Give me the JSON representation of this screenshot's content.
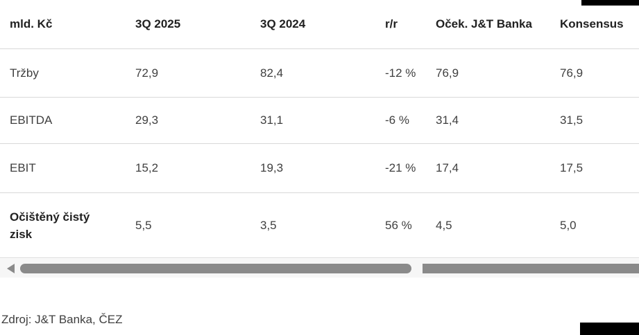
{
  "table": {
    "columns": [
      "mld. Kč",
      "3Q 2025",
      "3Q 2024",
      "r/r",
      "Oček. J&T Banka",
      "Konsensus"
    ],
    "rows": [
      {
        "label": "Tržby",
        "values": [
          "72,9",
          "82,4",
          "-12 %",
          "76,9",
          "76,9"
        ]
      },
      {
        "label": "EBITDA",
        "values": [
          "29,3",
          "31,1",
          "-6 %",
          "31,4",
          "31,5"
        ]
      },
      {
        "label": "EBIT",
        "values": [
          "15,2",
          "19,3",
          "-21 %",
          "17,4",
          "17,5"
        ]
      },
      {
        "label": "Očištěný čistý zisk",
        "values": [
          "5,5",
          "3,5",
          "56 %",
          "4,5",
          "5,0"
        ]
      }
    ]
  },
  "footer": {
    "source": "Zdroj: J&T Banka, ČEZ"
  },
  "colors": {
    "header_text": "#212121",
    "body_text": "#3f3f3f",
    "divider": "#d8d8d8",
    "scrollbar_thumb": "#8a8a8a",
    "scrollbar_track": "#f6f6f6",
    "black_bar": "#000000"
  },
  "chart_data": {
    "type": "table",
    "columns": [
      "mld. Kč",
      "3Q 2025",
      "3Q 2024",
      "r/r",
      "Oček. J&T Banka",
      "Konsensus"
    ],
    "rows": [
      [
        "Tržby",
        72.9,
        82.4,
        "-12 %",
        76.9,
        76.9
      ],
      [
        "EBITDA",
        29.3,
        31.1,
        "-6 %",
        31.4,
        31.5
      ],
      [
        "EBIT",
        15.2,
        19.3,
        "-21 %",
        17.4,
        17.5
      ],
      [
        "Očištěný čistý zisk",
        5.5,
        3.5,
        "56 %",
        4.5,
        5.0
      ]
    ],
    "source": "Zdroj: J&T Banka, ČEZ"
  }
}
